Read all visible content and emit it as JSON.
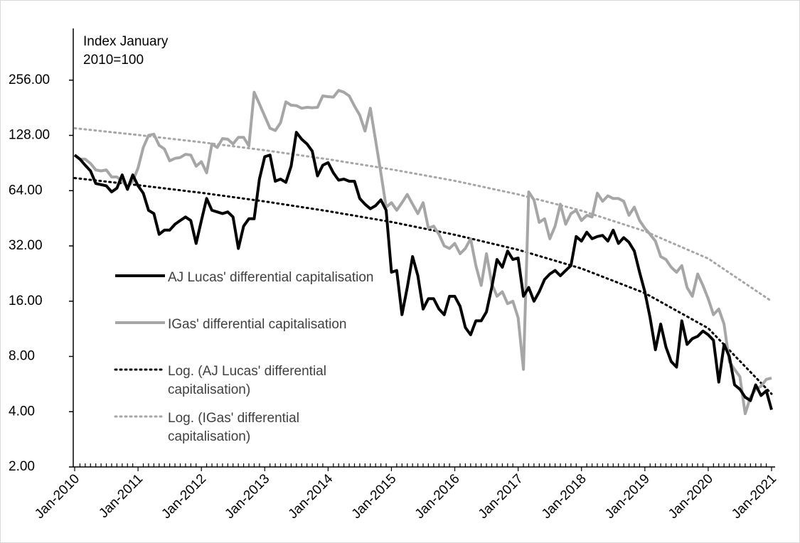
{
  "chart_data": {
    "type": "line",
    "y_label": "Index January 2010=100",
    "log_scale": true,
    "ylim": [
      2,
      512
    ],
    "yticks": [
      {
        "value": 2,
        "label": "2.00"
      },
      {
        "value": 4,
        "label": "4.00"
      },
      {
        "value": 8,
        "label": "8.00"
      },
      {
        "value": 16,
        "label": "16.00"
      },
      {
        "value": 32,
        "label": "32.00"
      },
      {
        "value": 64,
        "label": "64.00"
      },
      {
        "value": 128,
        "label": "128.00"
      },
      {
        "value": 256,
        "label": "256.00"
      }
    ],
    "categories": [
      "Jan-2010",
      null,
      null,
      null,
      null,
      null,
      null,
      null,
      null,
      null,
      null,
      null,
      "Jan-2011",
      null,
      null,
      null,
      null,
      null,
      null,
      null,
      null,
      null,
      null,
      null,
      "Jan-2012",
      null,
      null,
      null,
      null,
      null,
      null,
      null,
      null,
      null,
      null,
      null,
      "Jan-2013",
      null,
      null,
      null,
      null,
      null,
      null,
      null,
      null,
      null,
      null,
      null,
      "Jan-2014",
      null,
      null,
      null,
      null,
      null,
      null,
      null,
      null,
      null,
      null,
      null,
      "Jan-2015",
      null,
      null,
      null,
      null,
      null,
      null,
      null,
      null,
      null,
      null,
      null,
      "Jan-2016",
      null,
      null,
      null,
      null,
      null,
      null,
      null,
      null,
      null,
      null,
      null,
      "Jan-2017",
      null,
      null,
      null,
      null,
      null,
      null,
      null,
      null,
      null,
      null,
      null,
      "Jan-2018",
      null,
      null,
      null,
      null,
      null,
      null,
      null,
      null,
      null,
      null,
      null,
      "Jan-2019",
      null,
      null,
      null,
      null,
      null,
      null,
      null,
      null,
      null,
      null,
      null,
      "Jan-2020",
      null,
      null,
      null,
      null,
      null,
      null,
      null,
      null,
      null,
      null,
      null,
      "Jan-2021"
    ],
    "series": [
      {
        "name": "AJ Lucas' differential capitalisation",
        "color": "#000000",
        "style": "solid",
        "values": [
          100,
          95,
          88,
          82,
          70,
          69,
          68,
          63,
          66,
          78,
          65,
          78,
          68,
          62,
          50,
          48,
          37,
          39,
          39,
          42,
          44,
          46,
          44,
          33,
          44,
          58,
          50,
          49,
          48,
          49,
          46,
          31,
          41,
          45,
          45,
          74,
          98,
          100,
          72,
          74,
          71,
          87,
          133,
          122,
          115,
          105,
          77,
          88,
          91,
          80,
          73,
          74,
          72,
          72,
          58,
          54,
          51,
          53,
          57,
          50,
          23,
          23.5,
          13.5,
          19,
          28,
          22,
          14.5,
          16.5,
          16.5,
          14.5,
          13.5,
          17,
          17,
          15,
          11.5,
          10.5,
          12.5,
          12.5,
          14,
          19,
          27,
          24.5,
          30,
          27,
          27.5,
          17,
          19,
          16,
          18,
          21,
          22.5,
          23.5,
          22,
          23.5,
          25,
          36,
          34,
          38,
          35,
          36,
          36.5,
          34,
          39,
          33,
          35.5,
          33.5,
          30,
          23,
          18,
          13,
          8.7,
          12,
          9,
          7.5,
          7,
          12.5,
          9.3,
          10,
          10.3,
          11,
          10.5,
          9.8,
          5.8,
          9.3,
          8,
          5.6,
          5.3,
          4.8,
          4.6,
          5.6,
          4.9,
          5.2,
          4.1
        ]
      },
      {
        "name": "IGas' differential capitalisation",
        "color": "#a6a6a6",
        "style": "solid",
        "values": [
          100,
          95,
          95,
          90,
          83,
          82,
          83,
          76,
          76,
          72,
          67,
          72,
          85,
          110,
          128,
          130,
          113,
          108,
          93,
          96,
          97,
          101,
          100,
          87,
          92,
          80,
          115,
          110,
          123,
          122,
          115,
          125,
          125,
          112,
          220,
          190,
          163,
          140,
          136,
          150,
          195,
          187,
          186,
          180,
          182,
          181,
          182,
          210,
          208,
          207,
          225,
          220,
          210,
          185,
          165,
          135,
          180,
          120,
          80,
          52,
          55,
          50,
          55,
          61,
          54,
          48,
          55,
          40,
          41,
          37,
          32,
          31,
          33,
          29,
          31,
          35,
          25,
          19.5,
          29,
          20,
          17,
          18,
          15.5,
          16,
          13,
          6.8,
          63,
          57,
          43,
          45,
          35,
          41,
          54,
          42,
          48,
          50,
          44,
          47,
          46,
          62,
          56,
          60,
          58,
          58,
          56,
          47,
          52,
          44,
          40,
          37,
          34,
          28,
          27,
          24.5,
          23,
          25,
          19,
          17,
          22.5,
          19.5,
          16.5,
          13.5,
          14.5,
          12,
          7.5,
          6.8,
          6.2,
          3.9,
          4.8,
          5.3,
          5.5,
          6,
          6.1
        ]
      },
      {
        "name": "Log. (AJ Lucas' differential capitalisation)",
        "color": "#000000",
        "style": "dotted",
        "x": [
          "Jan-2010",
          "Jan-2011",
          "Jan-2012",
          "Jan-2013",
          "Jan-2014",
          "Jan-2015",
          "Jan-2016",
          "Jan-2017",
          "Jan-2018",
          "Jan-2019",
          "Jan-2020",
          "Jan-2021"
        ],
        "values": [
          75,
          68.6,
          62.3,
          55.9,
          49.5,
          43.2,
          36.8,
          30.5,
          24.1,
          17.7,
          11.4,
          5
        ]
      },
      {
        "name": "Log. (IGas' differential capitalisation)",
        "color": "#a6a6a6",
        "style": "dotted",
        "x": [
          "Jan-2010",
          "Jan-2011",
          "Jan-2012",
          "Jan-2013",
          "Jan-2014",
          "Jan-2015",
          "Jan-2016",
          "Jan-2017",
          "Jan-2018",
          "Jan-2019",
          "Jan-2020",
          "Jan-2021"
        ],
        "values": [
          140,
          128.7,
          117.5,
          106.2,
          94.9,
          83.6,
          72.4,
          61.1,
          49.8,
          38.5,
          27.3,
          16
        ]
      }
    ]
  }
}
